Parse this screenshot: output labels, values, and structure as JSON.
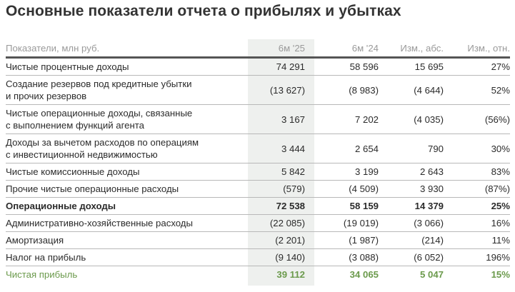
{
  "title": "Основные показатели отчета о прибылях и убытках",
  "header": [
    "Показатели, млн руб.",
    "6м '25",
    "6м '24",
    "Изм., абс.",
    "Изм., отн."
  ],
  "rows": [
    {
      "label": "Чистые процентные доходы",
      "v25": "74 291",
      "v24": "58 596",
      "abs": "15 695",
      "rel": "27%"
    },
    {
      "label": "Создание резервов под кредитные убытки\nи прочих резервов",
      "v25": "(13 627)",
      "v24": "(8 983)",
      "abs": "(4 644)",
      "rel": "52%"
    },
    {
      "label": "Чистые операционные доходы, связанные\nс выполнением функций агента",
      "v25": "3 167",
      "v24": "7 202",
      "abs": "(4 035)",
      "rel": "(56%)"
    },
    {
      "label": "Доходы за вычетом расходов по операциям\nс инвестиционной недвижимостью",
      "v25": "3 444",
      "v24": "2 654",
      "abs": "790",
      "rel": "30%"
    },
    {
      "label": "Чистые комиссионные доходы",
      "v25": "5 842",
      "v24": "3 199",
      "abs": "2 643",
      "rel": "83%"
    },
    {
      "label": "Прочие чистые операционные расходы",
      "v25": "(579)",
      "v24": "(4 509)",
      "abs": "3 930",
      "rel": "(87%)"
    },
    {
      "label": "Операционные доходы",
      "v25": "72 538",
      "v24": "58 159",
      "abs": "14 379",
      "rel": "25%"
    },
    {
      "label": "Административно-хозяйственные расходы",
      "v25": "(22 085)",
      "v24": "(19 019)",
      "abs": "(3 066)",
      "rel": "16%"
    },
    {
      "label": "Амортизация",
      "v25": "(2 201)",
      "v24": "(1 987)",
      "abs": "(214)",
      "rel": "11%"
    },
    {
      "label": "Налог на прибыль",
      "v25": "(9 140)",
      "v24": "(3 088)",
      "abs": "(6 052)",
      "rel": "196%"
    },
    {
      "label": "Чистая прибыль",
      "v25": "39 112",
      "v24": "34 065",
      "abs": "5 047",
      "rel": "15%"
    }
  ],
  "colors": {
    "accent_green": "#6b9a4c",
    "highlight_column": "#eef0ee"
  }
}
